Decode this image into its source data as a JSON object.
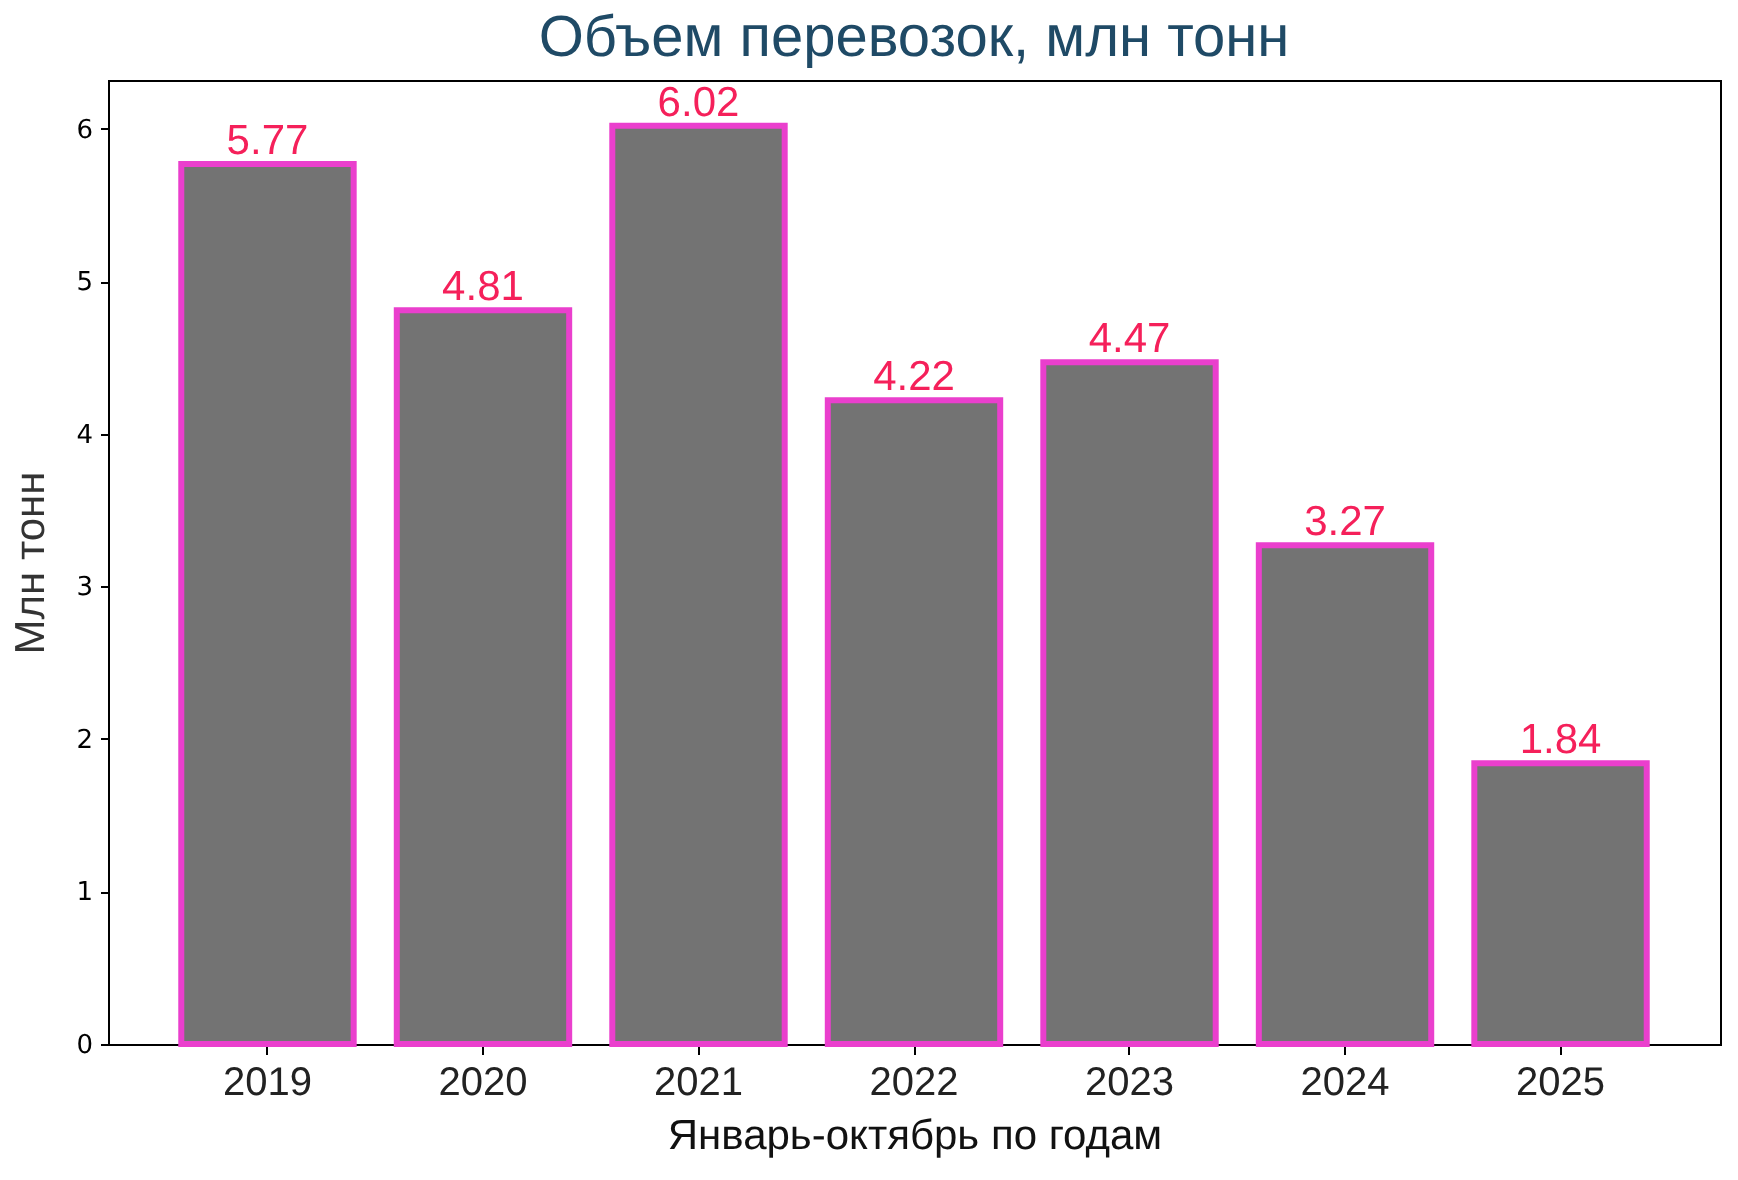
{
  "chart_data": {
    "type": "bar",
    "title": "Объем перевозок, млн тонн",
    "xlabel": "Январь-октябрь по годам",
    "ylabel": "Млн тонн",
    "categories": [
      "2019",
      "2020",
      "2021",
      "2022",
      "2023",
      "2024",
      "2025"
    ],
    "values": [
      5.77,
      4.81,
      6.02,
      4.22,
      4.47,
      3.27,
      1.84
    ],
    "color": "#737373",
    "ylim": [
      0,
      6.32
    ],
    "yticks": [
      0,
      1,
      2,
      3,
      4,
      5,
      6
    ],
    "data_labels": true,
    "grid": false
  }
}
